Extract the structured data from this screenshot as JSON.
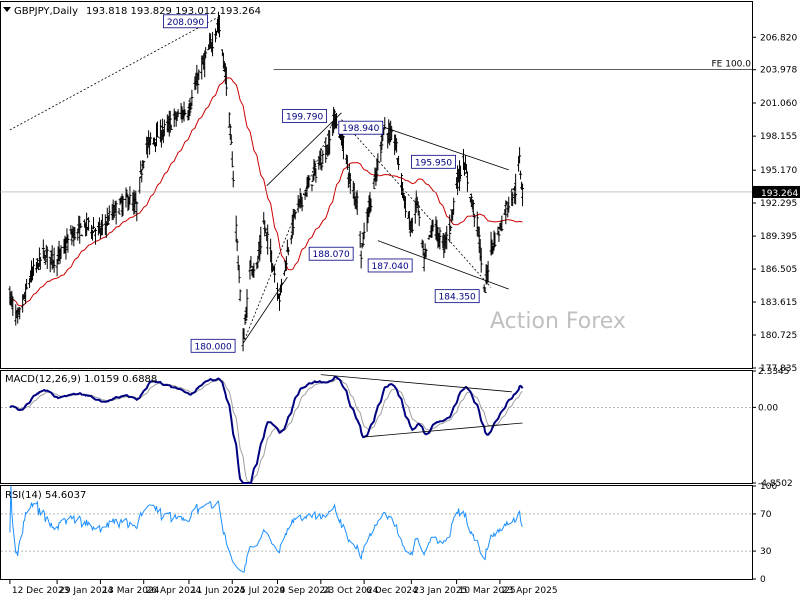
{
  "header": {
    "symbol": "GBPJPY,Daily",
    "ohlc": "193.818 193.829 193.012 193.264"
  },
  "watermark": "Action Forex",
  "colors": {
    "candle": "#000000",
    "sma": "#cc0000",
    "macd": "#000080",
    "signal": "#a0a0a0",
    "rsi": "#1e90ff",
    "label_border": "#000080"
  },
  "chart_data": [
    {
      "type": "candlestick",
      "panel": "price",
      "ylim": [
        177.835,
        210.0
      ],
      "y_ticks": [
        206.82,
        203.978,
        201.06,
        198.155,
        195.17,
        192.295,
        189.395,
        186.505,
        183.615,
        180.725,
        177.835
      ],
      "y_tick_labels": [
        "206.820",
        "203.978",
        "201.060",
        "198.155",
        "195.170",
        "192.295",
        "189.395",
        "186.505",
        "183.615",
        "180.725",
        "177.835"
      ],
      "last_price": 193.264,
      "last_price_label": "193.264",
      "x_dates": [
        "12 Dec 2023",
        "29 Jan 2024",
        "13 Mar 2024",
        "26 Apr 2024",
        "11 Jun 2024",
        "25 Jul 2024",
        "9 Sep 2024",
        "23 Oct 2024",
        "6 Dec 2024",
        "23 Jan 2025",
        "10 Mar 2025",
        "23 Apr 2025"
      ],
      "price_path": [
        [
          "12 Dec 2023",
          184.2
        ],
        [
          "20 Dec 2023",
          182.0
        ],
        [
          "2 Jan 2024",
          185.8
        ],
        [
          "15 Jan 2024",
          187.8
        ],
        [
          "29 Jan 2024",
          187.3
        ],
        [
          "13 Feb 2024",
          189.5
        ],
        [
          "1 Mar 2024",
          190.3
        ],
        [
          "13 Mar 2024",
          189.8
        ],
        [
          "26 Mar 2024",
          191.5
        ],
        [
          "10 Apr 2024",
          192.7
        ],
        [
          "19 Apr 2024",
          192.0
        ],
        [
          "26 Apr 2024",
          196.5
        ],
        [
          "3 May 2024",
          197.8
        ],
        [
          "15 May 2024",
          198.5
        ],
        [
          "29 May 2024",
          199.8
        ],
        [
          "11 Jun 2024",
          200.5
        ],
        [
          "21 Jun 2024",
          203.5
        ],
        [
          "5 Jul 2024",
          206.5
        ],
        [
          "11 Jul 2024",
          208.09
        ],
        [
          "19 Jul 2024",
          203.0
        ],
        [
          "25 Jul 2024",
          196.0
        ],
        [
          "5 Aug 2024",
          180.0
        ],
        [
          "13 Aug 2024",
          187.0
        ],
        [
          "19 Aug 2024",
          186.5
        ],
        [
          "26 Aug 2024",
          190.5
        ],
        [
          "3 Sep 2024",
          187.5
        ],
        [
          "11 Sep 2024",
          184.0
        ],
        [
          "19 Sep 2024",
          188.0
        ],
        [
          "27 Sep 2024",
          191.5
        ],
        [
          "9 Oct 2024",
          193.5
        ],
        [
          "23 Oct 2024",
          196.0
        ],
        [
          "31 Oct 2024",
          197.3
        ],
        [
          "6 Nov 2024",
          199.79
        ],
        [
          "15 Nov 2024",
          197.5
        ],
        [
          "22 Nov 2024",
          194.0
        ],
        [
          "29 Nov 2024",
          192.5
        ],
        [
          "3 Dec 2024",
          188.07
        ],
        [
          "10 Dec 2024",
          191.5
        ],
        [
          "18 Dec 2024",
          194.5
        ],
        [
          "26 Dec 2024",
          198.94
        ],
        [
          "7 Jan 2025",
          197.5
        ],
        [
          "17 Jan 2025",
          192.0
        ],
        [
          "23 Jan 2025",
          190.0
        ],
        [
          "29 Jan 2025",
          192.5
        ],
        [
          "5 Feb 2025",
          187.04
        ],
        [
          "14 Feb 2025",
          190.5
        ],
        [
          "24 Feb 2025",
          188.5
        ],
        [
          "3 Mar 2025",
          190.0
        ],
        [
          "10 Mar 2025",
          194.0
        ],
        [
          "17 Mar 2025",
          195.95
        ],
        [
          "24 Mar 2025",
          193.0
        ],
        [
          "1 Apr 2025",
          190.0
        ],
        [
          "7 Apr 2025",
          184.35
        ],
        [
          "14 Apr 2025",
          188.5
        ],
        [
          "23 Apr 2025",
          190.0
        ],
        [
          "30 Apr 2025",
          192.0
        ],
        [
          "9 May 2025",
          193.5
        ],
        [
          "13 May 2025",
          196.0
        ],
        [
          "16 May 2025",
          193.264
        ]
      ],
      "annotations": [
        {
          "label": "208.090",
          "date": "11 Jul 2024",
          "price": 208.09
        },
        {
          "label": "180.000",
          "date": "5 Aug 2024",
          "price": 180.0
        },
        {
          "label": "199.790",
          "date": "6 Nov 2024",
          "price": 199.79
        },
        {
          "label": "188.070",
          "date": "3 Dec 2024",
          "price": 188.07
        },
        {
          "label": "198.940",
          "date": "26 Dec 2024",
          "price": 198.94
        },
        {
          "label": "187.040",
          "date": "5 Feb 2025",
          "price": 187.04
        },
        {
          "label": "195.950",
          "date": "17 Mar 2025",
          "price": 195.95
        },
        {
          "label": "184.350",
          "date": "7 Apr 2025",
          "price": 184.35
        }
      ],
      "fe_label": "FE 100.0",
      "fe_price": 203.978
    },
    {
      "type": "line",
      "panel": "macd",
      "title": "MACD(12,26,9) 1.0159 0.6888",
      "ylim": [
        -4.8502,
        2.3345
      ],
      "y_tick_labels": [
        "2.3345",
        "0.00",
        "-4.8502"
      ],
      "y_ticks": [
        2.3345,
        0.0,
        -4.8502
      ]
    },
    {
      "type": "line",
      "panel": "rsi",
      "title": "RSI(14) 54.6037",
      "ylim": [
        0,
        100
      ],
      "y_ticks": [
        100,
        70,
        30,
        0
      ],
      "y_tick_labels": [
        "100",
        "70",
        "30",
        "0"
      ]
    }
  ]
}
